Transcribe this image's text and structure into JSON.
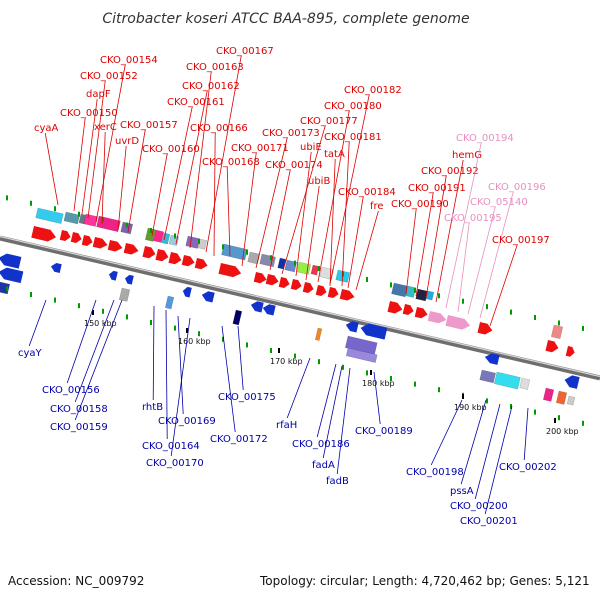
{
  "map": {
    "title": "Citrobacter koseri ATCC BAA-895, complete genome",
    "accession": "Accession: NC_009792",
    "summary": "Topology: circular; Length: 4,720,462 bp; Genes: 5,121"
  },
  "colors": {
    "forward_label": "#dd0000",
    "reverse_label": "#0000aa",
    "pink_label": "#e890c0",
    "backbone": "#808080",
    "tick": "#009900"
  },
  "ticks": [
    "150 kbp",
    "160 kbp",
    "170 kbp",
    "180 kbp",
    "190 kbp",
    "200 kbp"
  ],
  "top_labels": [
    {
      "text": "cyaA",
      "color": "red"
    },
    {
      "text": "CKO_00150",
      "color": "red"
    },
    {
      "text": "dapF",
      "color": "red"
    },
    {
      "text": "CKO_00152",
      "color": "red"
    },
    {
      "text": "CKO_00154",
      "color": "red"
    },
    {
      "text": "xerC",
      "color": "red"
    },
    {
      "text": "uvrD",
      "color": "red"
    },
    {
      "text": "CKO_00157",
      "color": "red"
    },
    {
      "text": "CKO_00160",
      "color": "red"
    },
    {
      "text": "CKO_00161",
      "color": "red"
    },
    {
      "text": "CKO_00162",
      "color": "red"
    },
    {
      "text": "CKO_00163",
      "color": "red"
    },
    {
      "text": "CKO_00167",
      "color": "red"
    },
    {
      "text": "CKO_00166",
      "color": "red"
    },
    {
      "text": "CKO_00168",
      "color": "red"
    },
    {
      "text": "CKO_00171",
      "color": "red"
    },
    {
      "text": "CKO_00173",
      "color": "red"
    },
    {
      "text": "CKO_00174",
      "color": "red"
    },
    {
      "text": "CKO_00177",
      "color": "red"
    },
    {
      "text": "ubiE",
      "color": "red"
    },
    {
      "text": "ubiB",
      "color": "red"
    },
    {
      "text": "CKO_00180",
      "color": "red"
    },
    {
      "text": "CKO_00182",
      "color": "red"
    },
    {
      "text": "CKO_00181",
      "color": "red"
    },
    {
      "text": "tatA",
      "color": "red"
    },
    {
      "text": "CKO_00184",
      "color": "red"
    },
    {
      "text": "fre",
      "color": "red"
    },
    {
      "text": "CKO_00190",
      "color": "red"
    },
    {
      "text": "CKO_00191",
      "color": "red"
    },
    {
      "text": "CKO_00192",
      "color": "red"
    },
    {
      "text": "hemG",
      "color": "red"
    },
    {
      "text": "CKO_00194",
      "color": "pink"
    },
    {
      "text": "CKO_00195",
      "color": "pink"
    },
    {
      "text": "CKO_05140",
      "color": "pink"
    },
    {
      "text": "CKO_00196",
      "color": "pink"
    },
    {
      "text": "CKO_00197",
      "color": "red"
    }
  ],
  "bottom_labels": [
    {
      "text": "cyaY"
    },
    {
      "text": "CKO_00156"
    },
    {
      "text": "CKO_00158"
    },
    {
      "text": "CKO_00159"
    },
    {
      "text": "rhtB"
    },
    {
      "text": "CKO_00164"
    },
    {
      "text": "CKO_00169"
    },
    {
      "text": "CKO_00170"
    },
    {
      "text": "CKO_00172"
    },
    {
      "text": "CKO_00175"
    },
    {
      "text": "rfaH"
    },
    {
      "text": "CKO_00186"
    },
    {
      "text": "fadA"
    },
    {
      "text": "fadB"
    },
    {
      "text": "CKO_00189"
    },
    {
      "text": "CKO_00198"
    },
    {
      "text": "pssA"
    },
    {
      "text": "CKO_00200"
    },
    {
      "text": "CKO_00201"
    },
    {
      "text": "CKO_00202"
    }
  ]
}
